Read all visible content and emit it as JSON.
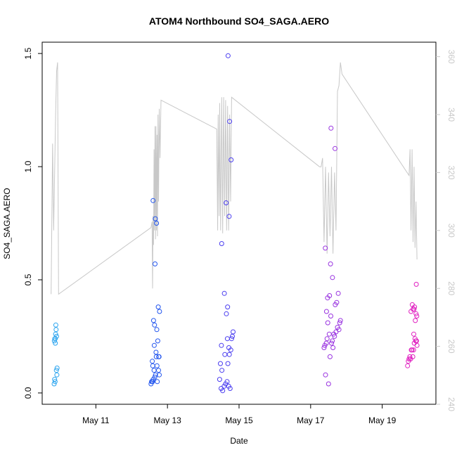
{
  "chart_data": {
    "type": "scatter",
    "title": "ATOM4 Northbound SO4_SAGA.AERO",
    "xlabel": "Date",
    "ylabel": "SO4_SAGA.AERO",
    "xlim": [
      "2018-05-09T12:00",
      "2018-05-20T12:00"
    ],
    "ylim": [
      -0.05,
      1.55
    ],
    "y2lim": [
      240,
      365
    ],
    "x_ticks": [
      {
        "value": "2018-05-11",
        "label": "May 11"
      },
      {
        "value": "2018-05-13",
        "label": "May 13"
      },
      {
        "value": "2018-05-15",
        "label": "May 15"
      },
      {
        "value": "2018-05-17",
        "label": "May 17"
      },
      {
        "value": "2018-05-19",
        "label": "May 19"
      }
    ],
    "y_ticks": [
      {
        "value": 0.0,
        "label": "0.0"
      },
      {
        "value": 0.5,
        "label": "0.5"
      },
      {
        "value": 1.0,
        "label": "1.0"
      },
      {
        "value": 1.5,
        "label": "1.5"
      }
    ],
    "y2_ticks": [
      {
        "value": 240,
        "label": "240"
      },
      {
        "value": 260,
        "label": "260"
      },
      {
        "value": 280,
        "label": "280"
      },
      {
        "value": 300,
        "label": "300"
      },
      {
        "value": 320,
        "label": "320"
      },
      {
        "value": 340,
        "label": "340"
      },
      {
        "value": 360,
        "label": "360"
      }
    ],
    "grid": false,
    "legend": "none",
    "colors": {
      "line": "#c8c8c8",
      "axis": "#000000",
      "right_axis": "#c8c8c8"
    },
    "series": [
      {
        "marker": "open-circle",
        "color": "#2aa4ef",
        "points": [
          [
            "2018-05-09T20:00",
            0.04
          ],
          [
            "2018-05-09T20:20",
            0.06
          ],
          [
            "2018-05-09T20:40",
            0.05
          ],
          [
            "2018-05-09T20:10",
            0.23
          ],
          [
            "2018-05-09T20:30",
            0.24
          ],
          [
            "2018-05-09T21:00",
            0.26
          ],
          [
            "2018-05-09T21:20",
            0.28
          ],
          [
            "2018-05-09T21:10",
            0.3
          ],
          [
            "2018-05-09T21:40",
            0.25
          ],
          [
            "2018-05-09T20:50",
            0.22
          ],
          [
            "2018-05-09T21:50",
            0.08
          ],
          [
            "2018-05-09T21:30",
            0.1
          ],
          [
            "2018-05-09T22:00",
            0.11
          ],
          [
            "2018-05-09T20:45",
            0.24
          ]
        ]
      },
      {
        "marker": "open-circle",
        "color": "#2255ee",
        "points": [
          [
            "2018-05-12T13:00",
            0.04
          ],
          [
            "2018-05-12T13:30",
            0.05
          ],
          [
            "2018-05-12T14:00",
            0.05
          ],
          [
            "2018-05-12T14:30",
            0.06
          ],
          [
            "2018-05-12T15:30",
            0.07
          ],
          [
            "2018-05-12T16:00",
            0.08
          ],
          [
            "2018-05-12T15:00",
            0.1
          ],
          [
            "2018-05-12T14:10",
            0.12
          ],
          [
            "2018-05-12T13:50",
            0.14
          ],
          [
            "2018-05-12T17:00",
            0.12
          ],
          [
            "2018-05-12T18:30",
            0.08
          ],
          [
            "2018-05-12T18:00",
            0.1
          ],
          [
            "2018-05-12T16:30",
            0.16
          ],
          [
            "2018-05-12T18:20",
            0.16
          ],
          [
            "2018-05-12T16:20",
            0.18
          ],
          [
            "2018-05-12T15:10",
            0.21
          ],
          [
            "2018-05-12T17:30",
            0.23
          ],
          [
            "2018-05-12T16:50",
            0.28
          ],
          [
            "2018-05-12T15:20",
            0.3
          ],
          [
            "2018-05-12T14:40",
            0.32
          ],
          [
            "2018-05-12T18:40",
            0.36
          ],
          [
            "2018-05-12T17:50",
            0.38
          ],
          [
            "2018-05-12T15:40",
            0.57
          ],
          [
            "2018-05-12T16:40",
            0.75
          ],
          [
            "2018-05-12T15:50",
            0.77
          ],
          [
            "2018-05-12T14:20",
            0.85
          ],
          [
            "2018-05-12T13:20",
            0.05
          ],
          [
            "2018-05-12T17:10",
            0.05
          ],
          [
            "2018-05-12T18:10",
            0.16
          ]
        ]
      },
      {
        "marker": "open-circle",
        "color": "#4a3df0",
        "points": [
          [
            "2018-05-14T11:00",
            0.06
          ],
          [
            "2018-05-14T12:00",
            0.02
          ],
          [
            "2018-05-14T13:00",
            0.01
          ],
          [
            "2018-05-14T14:00",
            0.03
          ],
          [
            "2018-05-14T15:00",
            0.04
          ],
          [
            "2018-05-14T16:00",
            0.05
          ],
          [
            "2018-05-14T17:00",
            0.03
          ],
          [
            "2018-05-14T18:00",
            0.02
          ],
          [
            "2018-05-14T12:30",
            0.1
          ],
          [
            "2018-05-14T11:30",
            0.13
          ],
          [
            "2018-05-14T14:30",
            0.17
          ],
          [
            "2018-05-14T16:30",
            0.13
          ],
          [
            "2018-05-14T17:30",
            0.17
          ],
          [
            "2018-05-14T12:10",
            0.21
          ],
          [
            "2018-05-14T18:30",
            0.19
          ],
          [
            "2018-05-14T17:10",
            0.2
          ],
          [
            "2018-05-14T16:10",
            0.24
          ],
          [
            "2018-05-14T19:00",
            0.24
          ],
          [
            "2018-05-14T19:30",
            0.25
          ],
          [
            "2018-05-14T20:00",
            0.27
          ],
          [
            "2018-05-14T15:30",
            0.35
          ],
          [
            "2018-05-14T16:20",
            0.38
          ],
          [
            "2018-05-14T14:10",
            0.44
          ],
          [
            "2018-05-14T12:20",
            0.66
          ],
          [
            "2018-05-14T17:20",
            0.78
          ],
          [
            "2018-05-14T15:20",
            0.84
          ],
          [
            "2018-05-14T18:40",
            1.03
          ],
          [
            "2018-05-14T17:40",
            1.2
          ],
          [
            "2018-05-14T16:40",
            1.49
          ]
        ]
      },
      {
        "marker": "open-circle",
        "color": "#9933e0",
        "points": [
          [
            "2018-05-17T12:00",
            0.04
          ],
          [
            "2018-05-17T10:00",
            0.08
          ],
          [
            "2018-05-17T13:00",
            0.16
          ],
          [
            "2018-05-17T09:00",
            0.2
          ],
          [
            "2018-05-17T10:30",
            0.22
          ],
          [
            "2018-05-17T11:00",
            0.24
          ],
          [
            "2018-05-17T09:30",
            0.21
          ],
          [
            "2018-05-17T14:00",
            0.22
          ],
          [
            "2018-05-17T15:00",
            0.2
          ],
          [
            "2018-05-17T16:00",
            0.25
          ],
          [
            "2018-05-17T17:00",
            0.27
          ],
          [
            "2018-05-17T18:00",
            0.29
          ],
          [
            "2018-05-17T14:30",
            0.23
          ],
          [
            "2018-05-17T15:30",
            0.26
          ],
          [
            "2018-05-17T12:30",
            0.26
          ],
          [
            "2018-05-17T19:00",
            0.28
          ],
          [
            "2018-05-17T19:30",
            0.31
          ],
          [
            "2018-05-17T20:00",
            0.32
          ],
          [
            "2018-05-17T11:30",
            0.31
          ],
          [
            "2018-05-17T13:30",
            0.34
          ],
          [
            "2018-05-17T16:30",
            0.39
          ],
          [
            "2018-05-17T10:40",
            0.36
          ],
          [
            "2018-05-17T17:30",
            0.4
          ],
          [
            "2018-05-17T12:40",
            0.43
          ],
          [
            "2018-05-17T11:20",
            0.42
          ],
          [
            "2018-05-17T18:30",
            0.44
          ],
          [
            "2018-05-17T14:40",
            0.51
          ],
          [
            "2018-05-17T13:20",
            0.57
          ],
          [
            "2018-05-17T09:50",
            0.64
          ],
          [
            "2018-05-17T16:20",
            1.08
          ],
          [
            "2018-05-17T13:40",
            1.17
          ]
        ]
      },
      {
        "marker": "open-circle",
        "color": "#e020c0",
        "points": [
          [
            "2018-05-19T17:00",
            0.12
          ],
          [
            "2018-05-19T17:30",
            0.14
          ],
          [
            "2018-05-19T18:00",
            0.15
          ],
          [
            "2018-05-19T18:30",
            0.16
          ],
          [
            "2018-05-19T19:00",
            0.15
          ],
          [
            "2018-05-19T20:30",
            0.16
          ],
          [
            "2018-05-19T19:30",
            0.19
          ],
          [
            "2018-05-19T20:00",
            0.19
          ],
          [
            "2018-05-19T21:00",
            0.19
          ],
          [
            "2018-05-19T21:30",
            0.22
          ],
          [
            "2018-05-19T22:00",
            0.24
          ],
          [
            "2018-05-19T22:30",
            0.23
          ],
          [
            "2018-05-19T23:00",
            0.23
          ],
          [
            "2018-05-19T23:20",
            0.21
          ],
          [
            "2018-05-19T21:10",
            0.26
          ],
          [
            "2018-05-19T22:10",
            0.32
          ],
          [
            "2018-05-19T22:40",
            0.35
          ],
          [
            "2018-05-19T23:10",
            0.34
          ],
          [
            "2018-05-19T20:40",
            0.37
          ],
          [
            "2018-05-19T21:40",
            0.38
          ],
          [
            "2018-05-19T20:10",
            0.39
          ],
          [
            "2018-05-19T21:20",
            0.37
          ],
          [
            "2018-05-19T22:50",
            0.48
          ],
          [
            "2018-05-19T19:20",
            0.36
          ]
        ]
      }
    ],
    "line_series": {
      "axis": "right",
      "color": "#c8c8c8",
      "points": [
        [
          "2018-05-09T18:00",
          278
        ],
        [
          "2018-05-09T19:00",
          330
        ],
        [
          "2018-05-09T19:40",
          300
        ],
        [
          "2018-05-09T20:20",
          320
        ],
        [
          "2018-05-09T21:00",
          340
        ],
        [
          "2018-05-09T21:40",
          355
        ],
        [
          "2018-05-09T22:20",
          358
        ],
        [
          "2018-05-09T23:00",
          278
        ],
        [
          "2018-05-12T13:00",
          301
        ],
        [
          "2018-05-12T13:40",
          303
        ],
        [
          "2018-05-12T14:00",
          280
        ],
        [
          "2018-05-12T14:20",
          305
        ],
        [
          "2018-05-12T14:40",
          295
        ],
        [
          "2018-05-12T15:00",
          328
        ],
        [
          "2018-05-12T15:20",
          300
        ],
        [
          "2018-05-12T15:40",
          336
        ],
        [
          "2018-05-12T16:00",
          297
        ],
        [
          "2018-05-12T16:20",
          336
        ],
        [
          "2018-05-12T16:40",
          300
        ],
        [
          "2018-05-12T17:00",
          333
        ],
        [
          "2018-05-12T17:20",
          298
        ],
        [
          "2018-05-12T17:40",
          340
        ],
        [
          "2018-05-12T18:00",
          310
        ],
        [
          "2018-05-12T18:30",
          342
        ],
        [
          "2018-05-12T19:00",
          325
        ],
        [
          "2018-05-12T19:40",
          345
        ],
        [
          "2018-05-14T09:00",
          335
        ],
        [
          "2018-05-14T09:40",
          300
        ],
        [
          "2018-05-14T10:00",
          340
        ],
        [
          "2018-05-14T10:40",
          305
        ],
        [
          "2018-05-14T11:00",
          344
        ],
        [
          "2018-05-14T11:40",
          300
        ],
        [
          "2018-05-14T12:20",
          346
        ],
        [
          "2018-05-14T13:00",
          299
        ],
        [
          "2018-05-14T13:40",
          346
        ],
        [
          "2018-05-14T14:20",
          305
        ],
        [
          "2018-05-14T15:00",
          345
        ],
        [
          "2018-05-14T15:40",
          300
        ],
        [
          "2018-05-14T16:20",
          343
        ],
        [
          "2018-05-14T17:00",
          300
        ],
        [
          "2018-05-14T17:40",
          340
        ],
        [
          "2018-05-14T18:20",
          310
        ],
        [
          "2018-05-14T19:00",
          346
        ],
        [
          "2018-05-17T06:00",
          322
        ],
        [
          "2018-05-17T07:00",
          322
        ],
        [
          "2018-05-17T08:00",
          325
        ],
        [
          "2018-05-17T09:00",
          296
        ],
        [
          "2018-05-17T10:00",
          322
        ],
        [
          "2018-05-17T11:00",
          292
        ],
        [
          "2018-05-17T12:00",
          320
        ],
        [
          "2018-05-17T13:00",
          298
        ],
        [
          "2018-05-17T14:00",
          322
        ],
        [
          "2018-05-17T15:00",
          292
        ],
        [
          "2018-05-17T16:00",
          320
        ],
        [
          "2018-05-17T17:00",
          300
        ],
        [
          "2018-05-17T18:00",
          348
        ],
        [
          "2018-05-17T19:00",
          350
        ],
        [
          "2018-05-17T20:00",
          358
        ],
        [
          "2018-05-17T21:00",
          354
        ],
        [
          "2018-05-19T18:00",
          319
        ],
        [
          "2018-05-19T18:40",
          328
        ],
        [
          "2018-05-19T19:20",
          300
        ],
        [
          "2018-05-19T20:00",
          328
        ],
        [
          "2018-05-19T20:40",
          296
        ],
        [
          "2018-05-19T21:20",
          322
        ],
        [
          "2018-05-19T22:00",
          294
        ],
        [
          "2018-05-19T22:40",
          310
        ],
        [
          "2018-05-19T23:20",
          290
        ]
      ]
    }
  }
}
